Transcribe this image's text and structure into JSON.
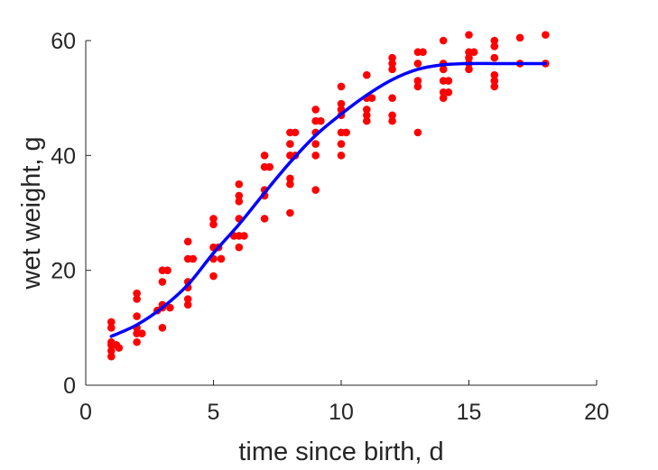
{
  "chart_data": {
    "type": "scatter",
    "xlabel": "time since birth, d",
    "ylabel": "wet weight, g",
    "xlim": [
      0,
      20
    ],
    "ylim": [
      0,
      60
    ],
    "xticks": [
      "0",
      "5",
      "10",
      "15",
      "20"
    ],
    "yticks": [
      "0",
      "20",
      "40",
      "60"
    ],
    "grid": false,
    "legend": "none",
    "series": [
      {
        "kind": "points",
        "color": "#ff0000",
        "points": [
          [
            1,
            11
          ],
          [
            1,
            10
          ],
          [
            1,
            7.5
          ],
          [
            1,
            7
          ],
          [
            1,
            6
          ],
          [
            1,
            5
          ],
          [
            1.2,
            7
          ],
          [
            1.3,
            6.5
          ],
          [
            2,
            16
          ],
          [
            2,
            15
          ],
          [
            2,
            12
          ],
          [
            2,
            10
          ],
          [
            2,
            9
          ],
          [
            2,
            7.5
          ],
          [
            2.2,
            9
          ],
          [
            2.8,
            13
          ],
          [
            3,
            20
          ],
          [
            3,
            18
          ],
          [
            3,
            14
          ],
          [
            3,
            13.5
          ],
          [
            3,
            10
          ],
          [
            3.2,
            20
          ],
          [
            3.3,
            13.5
          ],
          [
            4,
            25
          ],
          [
            4,
            22
          ],
          [
            4,
            18
          ],
          [
            4,
            17
          ],
          [
            4,
            15
          ],
          [
            4,
            14
          ],
          [
            4.2,
            22
          ],
          [
            5,
            29
          ],
          [
            5,
            28
          ],
          [
            5,
            24
          ],
          [
            5,
            22
          ],
          [
            5,
            19
          ],
          [
            5.2,
            24
          ],
          [
            5.3,
            22
          ],
          [
            6,
            35
          ],
          [
            6,
            33
          ],
          [
            6,
            32
          ],
          [
            6,
            29
          ],
          [
            6,
            26
          ],
          [
            6,
            24
          ],
          [
            5.8,
            26
          ],
          [
            6.2,
            26
          ],
          [
            7,
            40
          ],
          [
            7,
            38
          ],
          [
            7,
            34
          ],
          [
            7,
            33
          ],
          [
            7,
            29
          ],
          [
            7.2,
            38
          ],
          [
            8,
            44
          ],
          [
            8,
            42
          ],
          [
            8,
            40
          ],
          [
            8,
            36
          ],
          [
            8,
            35
          ],
          [
            8,
            30
          ],
          [
            8.2,
            44
          ],
          [
            8.2,
            40
          ],
          [
            9,
            48
          ],
          [
            9,
            46
          ],
          [
            9,
            44
          ],
          [
            9,
            42
          ],
          [
            9,
            40
          ],
          [
            9,
            34
          ],
          [
            9.2,
            46
          ],
          [
            10,
            52
          ],
          [
            10,
            49
          ],
          [
            10,
            48
          ],
          [
            10,
            47
          ],
          [
            10,
            44
          ],
          [
            10,
            42
          ],
          [
            10,
            40
          ],
          [
            10.2,
            44
          ],
          [
            11,
            54
          ],
          [
            11,
            50
          ],
          [
            11,
            48
          ],
          [
            11,
            47
          ],
          [
            11,
            46
          ],
          [
            11.2,
            50
          ],
          [
            12,
            57
          ],
          [
            12,
            56
          ],
          [
            12,
            55
          ],
          [
            12,
            50
          ],
          [
            12,
            47
          ],
          [
            12,
            46
          ],
          [
            13,
            58
          ],
          [
            13,
            56
          ],
          [
            13,
            53
          ],
          [
            13,
            52
          ],
          [
            13,
            44
          ],
          [
            13.2,
            58
          ],
          [
            14,
            60
          ],
          [
            14,
            56
          ],
          [
            14,
            55
          ],
          [
            14,
            53
          ],
          [
            14,
            51
          ],
          [
            14,
            50
          ],
          [
            14.2,
            53
          ],
          [
            14.2,
            51
          ],
          [
            15,
            61
          ],
          [
            15,
            58
          ],
          [
            15,
            57
          ],
          [
            15,
            56
          ],
          [
            15,
            55
          ],
          [
            15.2,
            58
          ],
          [
            16,
            60
          ],
          [
            16,
            59
          ],
          [
            16,
            57
          ],
          [
            16,
            54
          ],
          [
            16,
            53
          ],
          [
            16,
            52
          ],
          [
            17,
            60.5
          ],
          [
            17,
            56
          ],
          [
            18,
            61
          ],
          [
            18,
            56
          ]
        ]
      },
      {
        "kind": "line",
        "color": "#0000ff",
        "x": [
          1,
          2,
          3,
          4,
          5,
          6,
          7,
          8,
          9,
          10,
          11,
          12,
          13,
          14,
          15,
          16,
          17,
          18
        ],
        "y": [
          8.5,
          10.5,
          13.5,
          17.5,
          23,
          28,
          33.5,
          38.8,
          43.5,
          47.2,
          50.5,
          53.2,
          55,
          55.8,
          56,
          56,
          56,
          56
        ]
      }
    ]
  }
}
